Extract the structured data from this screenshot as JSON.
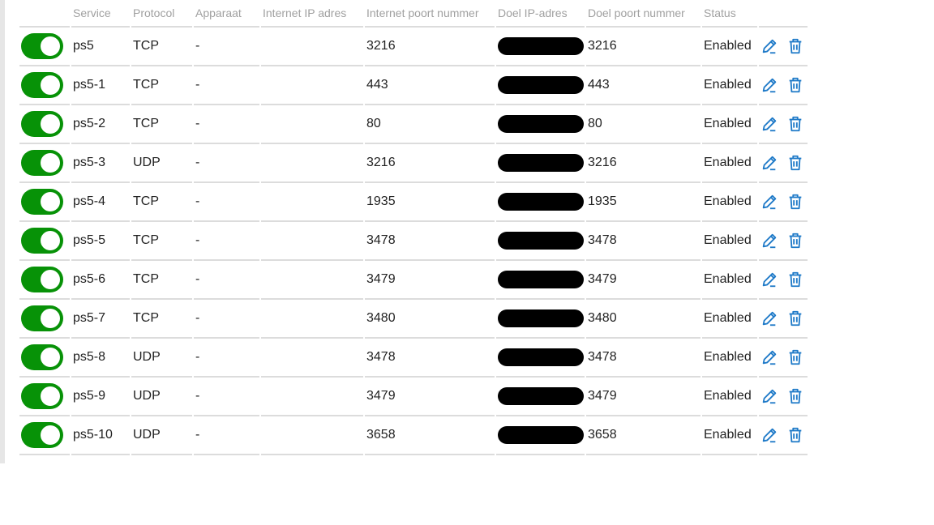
{
  "columns": [
    "",
    "Service",
    "Protocol",
    "Apparaat",
    "Internet IP adres",
    "Internet poort nummer",
    "Doel IP-adres",
    "Doel poort nummer",
    "Status",
    ""
  ],
  "colors": {
    "toggle_on": "#079207",
    "icon": "#1f7ac8",
    "redaction": "#000000"
  },
  "rows": [
    {
      "enabled": true,
      "service": "ps5",
      "protocol": "TCP",
      "apparaat": "-",
      "internet_ip": "",
      "internet_port": "3216",
      "target_ip_redacted": true,
      "target_port": "3216",
      "status": "Enabled"
    },
    {
      "enabled": true,
      "service": "ps5-1",
      "protocol": "TCP",
      "apparaat": "-",
      "internet_ip": "",
      "internet_port": "443",
      "target_ip_redacted": true,
      "target_port": "443",
      "status": "Enabled"
    },
    {
      "enabled": true,
      "service": "ps5-2",
      "protocol": "TCP",
      "apparaat": "-",
      "internet_ip": "",
      "internet_port": "80",
      "target_ip_redacted": true,
      "target_port": "80",
      "status": "Enabled"
    },
    {
      "enabled": true,
      "service": "ps5-3",
      "protocol": "UDP",
      "apparaat": "-",
      "internet_ip": "",
      "internet_port": "3216",
      "target_ip_redacted": true,
      "target_port": "3216",
      "status": "Enabled"
    },
    {
      "enabled": true,
      "service": "ps5-4",
      "protocol": "TCP",
      "apparaat": "-",
      "internet_ip": "",
      "internet_port": "1935",
      "target_ip_redacted": true,
      "target_port": "1935",
      "status": "Enabled"
    },
    {
      "enabled": true,
      "service": "ps5-5",
      "protocol": "TCP",
      "apparaat": "-",
      "internet_ip": "",
      "internet_port": "3478",
      "target_ip_redacted": true,
      "target_port": "3478",
      "status": "Enabled"
    },
    {
      "enabled": true,
      "service": "ps5-6",
      "protocol": "TCP",
      "apparaat": "-",
      "internet_ip": "",
      "internet_port": "3479",
      "target_ip_redacted": true,
      "target_port": "3479",
      "status": "Enabled"
    },
    {
      "enabled": true,
      "service": "ps5-7",
      "protocol": "TCP",
      "apparaat": "-",
      "internet_ip": "",
      "internet_port": "3480",
      "target_ip_redacted": true,
      "target_port": "3480",
      "status": "Enabled"
    },
    {
      "enabled": true,
      "service": "ps5-8",
      "protocol": "UDP",
      "apparaat": "-",
      "internet_ip": "",
      "internet_port": "3478",
      "target_ip_redacted": true,
      "target_port": "3478",
      "status": "Enabled"
    },
    {
      "enabled": true,
      "service": "ps5-9",
      "protocol": "UDP",
      "apparaat": "-",
      "internet_ip": "",
      "internet_port": "3479",
      "target_ip_redacted": true,
      "target_port": "3479",
      "status": "Enabled"
    },
    {
      "enabled": true,
      "service": "ps5-10",
      "protocol": "UDP",
      "apparaat": "-",
      "internet_ip": "",
      "internet_port": "3658",
      "target_ip_redacted": true,
      "target_port": "3658",
      "status": "Enabled"
    }
  ]
}
